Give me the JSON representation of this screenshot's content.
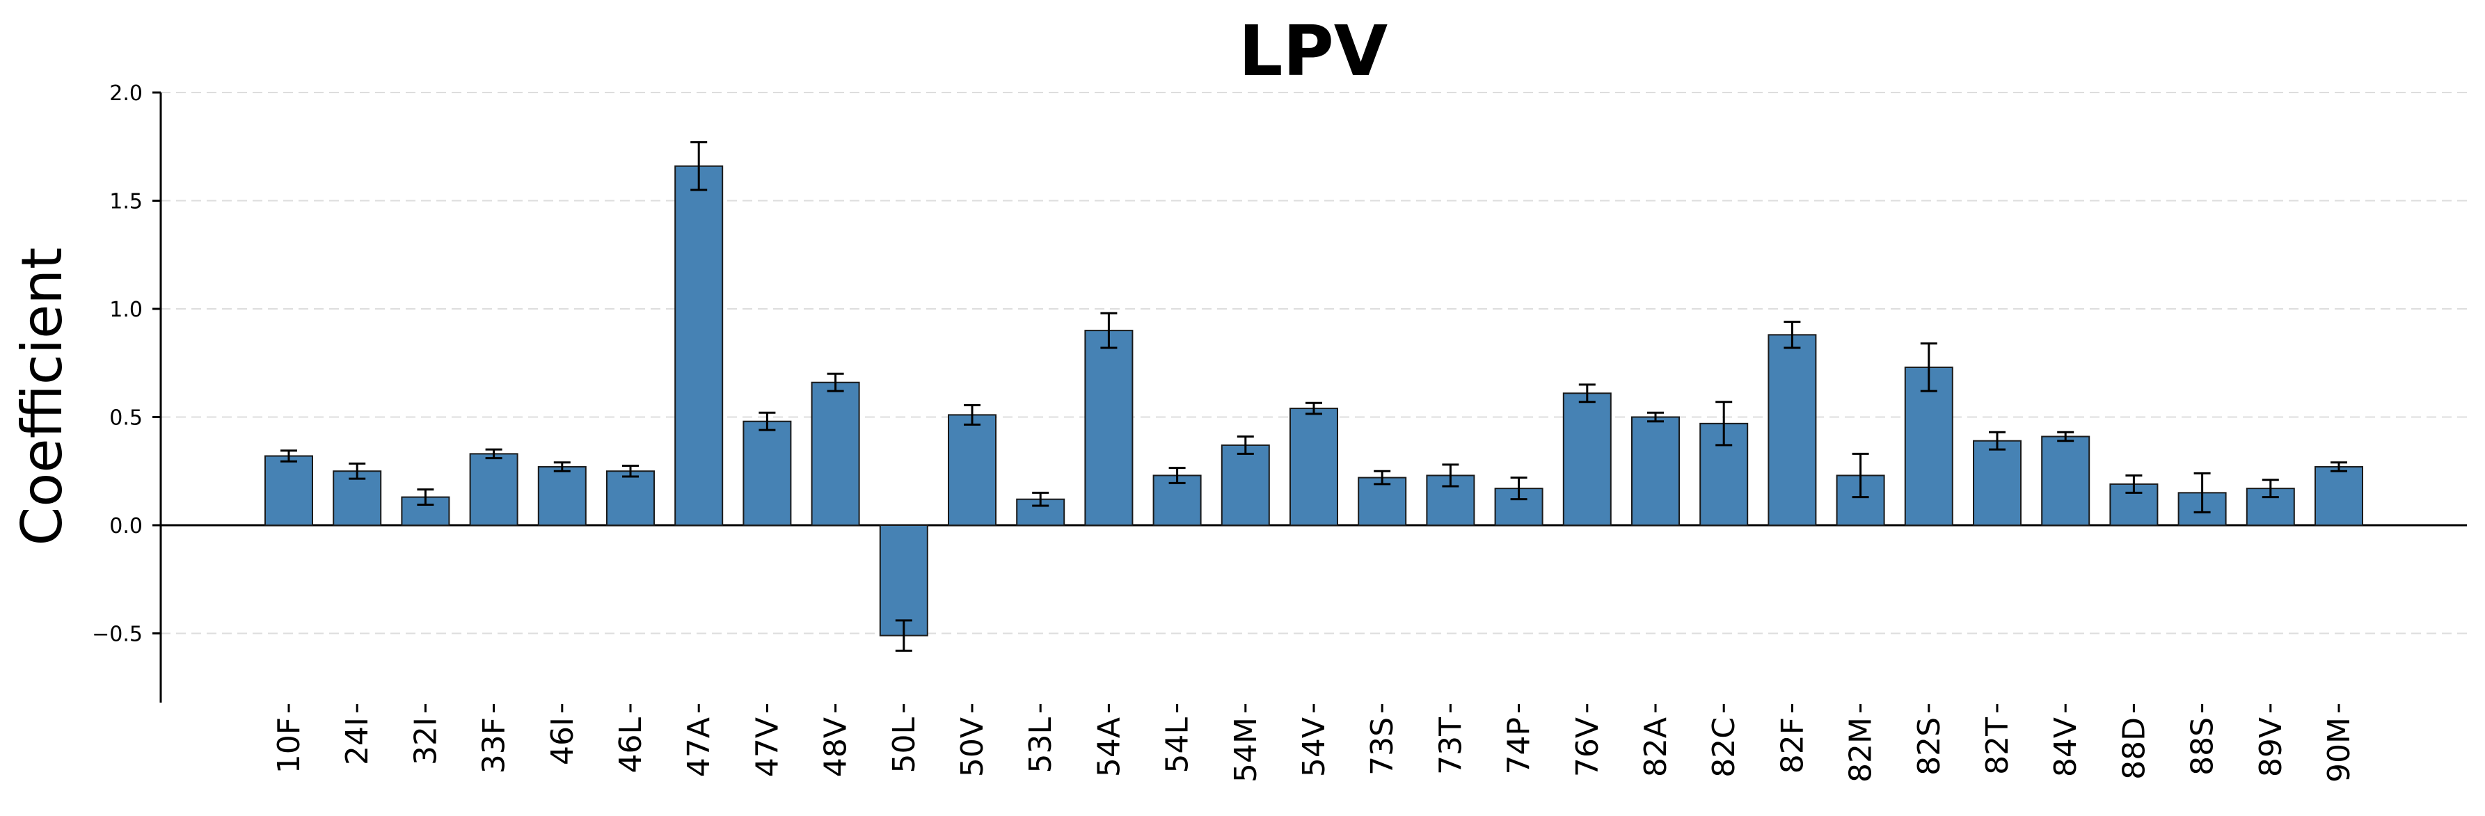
{
  "chart_data": {
    "type": "bar",
    "title": "LPV",
    "xlabel": "",
    "ylabel": "Coefficient",
    "ylim": [
      -0.82,
      2.0
    ],
    "yticks": [
      -0.5,
      0.0,
      0.5,
      1.0,
      1.5,
      2.0
    ],
    "ytick_labels": [
      "−0.5",
      "0.0",
      "0.5",
      "1.0",
      "1.5",
      "2.0"
    ],
    "grid": "horizontal dashed",
    "categories": [
      "10F",
      "24I",
      "32I",
      "33F",
      "46I",
      "46L",
      "47A",
      "47V",
      "48V",
      "50L",
      "50V",
      "53L",
      "54A",
      "54L",
      "54M",
      "54V",
      "73S",
      "73T",
      "74P",
      "76V",
      "82A",
      "82C",
      "82F",
      "82M",
      "82S",
      "82T",
      "84V",
      "88D",
      "88S",
      "89V",
      "90M"
    ],
    "values": [
      0.32,
      0.25,
      0.13,
      0.33,
      0.27,
      0.25,
      1.66,
      0.48,
      0.66,
      -0.51,
      0.51,
      0.12,
      0.9,
      0.23,
      0.37,
      0.54,
      0.22,
      0.23,
      0.17,
      0.61,
      0.5,
      0.47,
      0.88,
      0.23,
      0.73,
      0.39,
      0.41,
      0.19,
      0.15,
      0.17,
      0.27
    ],
    "errors": [
      0.025,
      0.035,
      0.035,
      0.02,
      0.02,
      0.025,
      0.11,
      0.04,
      0.04,
      0.07,
      0.045,
      0.03,
      0.08,
      0.035,
      0.04,
      0.025,
      0.03,
      0.05,
      0.05,
      0.04,
      0.02,
      0.1,
      0.06,
      0.1,
      0.11,
      0.04,
      0.02,
      0.04,
      0.09,
      0.04,
      0.02
    ],
    "colors": {
      "bar": "#4682b4",
      "bar_edge": "#1a1a1a",
      "error_bar": "#000000",
      "grid": "#dddddd",
      "axis": "#000000"
    }
  }
}
